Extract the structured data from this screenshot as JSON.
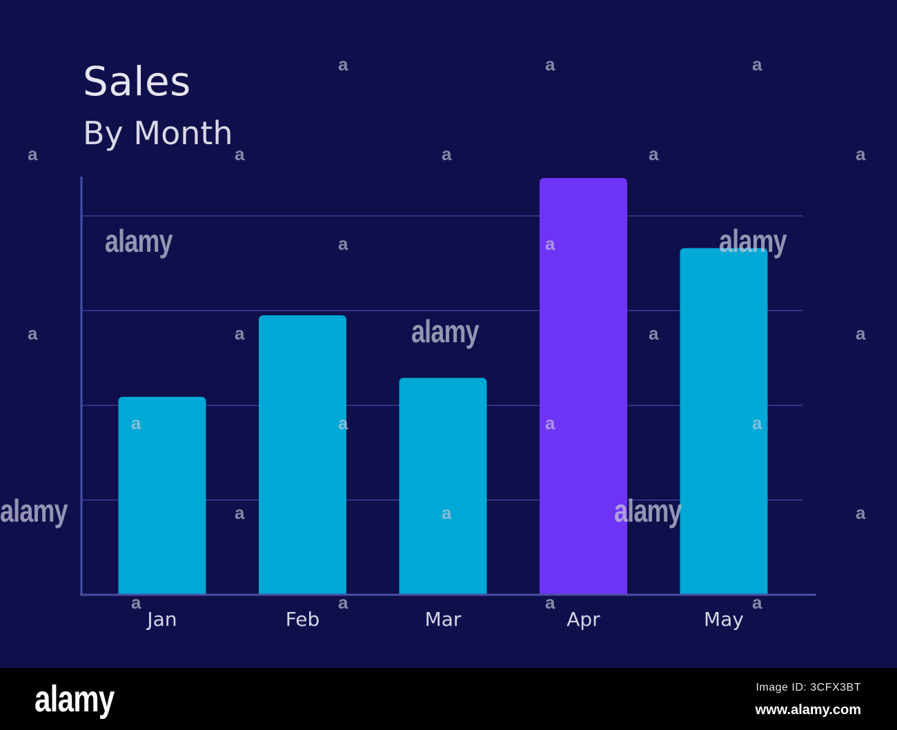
{
  "chart_data": {
    "type": "bar",
    "title": "Sales",
    "subtitle": "By Month",
    "categories": [
      "Jan",
      "Feb",
      "Mar",
      "Apr",
      "May"
    ],
    "values": [
      2.09,
      2.95,
      2.29,
      4.4,
      3.66
    ],
    "ylim": [
      0,
      4.4
    ],
    "grid": true,
    "highlight_index": 3,
    "colors": {
      "bar": "#00a8d6",
      "highlight": "#6e34f5",
      "axis": "#4a4fa6",
      "grid": "#3a3f96",
      "background": "#0f0f4b",
      "text": "#d6d6ea"
    }
  },
  "watermark": {
    "text": "alamy",
    "glyph": "a"
  },
  "footer": {
    "logo": "alamy",
    "image_id": "Image ID: 3CFX3BT",
    "url": "www.alamy.com"
  }
}
